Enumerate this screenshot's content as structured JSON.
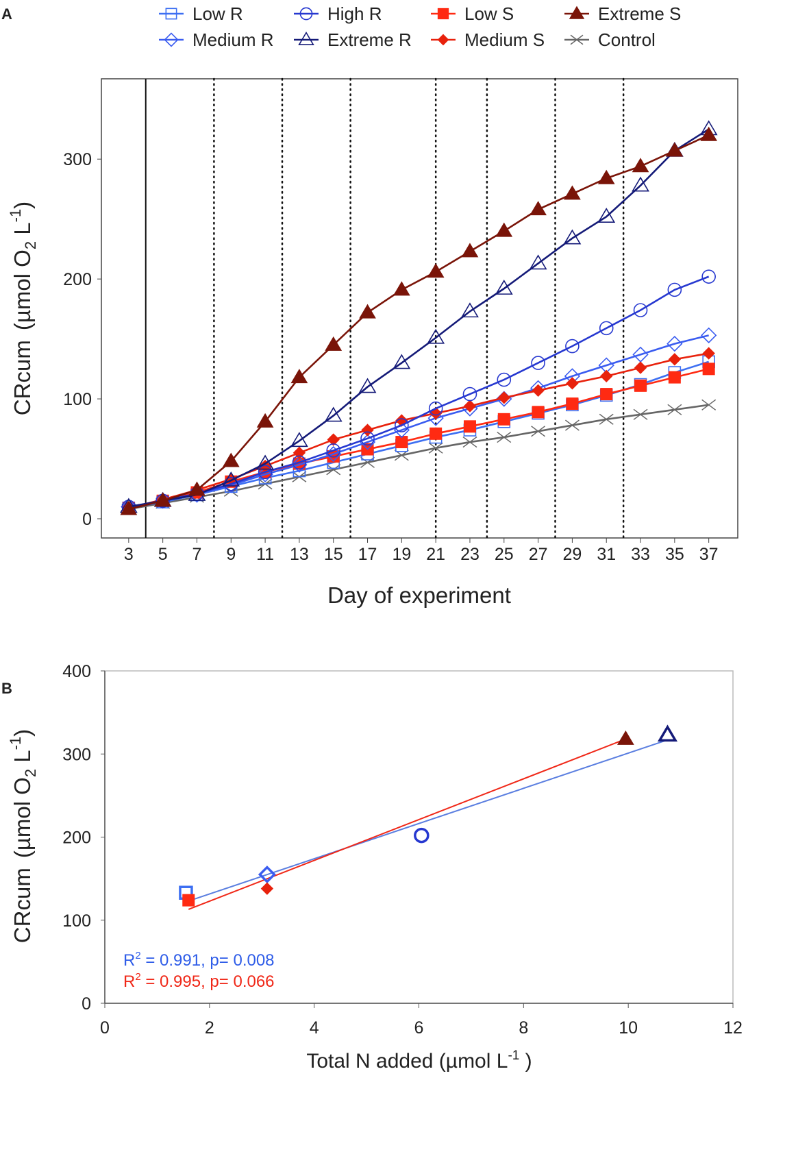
{
  "panel_labels": {
    "a": "A",
    "b": "B"
  },
  "colors": {
    "Low R": "#3d6ff2",
    "Medium R": "#3a5cf0",
    "High R": "#2638d0",
    "Extreme R": "#141a78",
    "Low S": "#ff2a12",
    "Medium S": "#e8210c",
    "Extreme S": "#7a1408",
    "Control": "#666666"
  },
  "markers": {
    "Low R": "open-square",
    "Medium R": "open-diamond",
    "High R": "open-circle",
    "Extreme R": "open-triangle",
    "Low S": "filled-square",
    "Medium S": "filled-diamond",
    "Extreme S": "filled-triangle",
    "Control": "cross"
  },
  "legend": [
    "Low R",
    "High R",
    "Low S",
    "Extreme S",
    "Medium R",
    "Extreme R",
    "Medium S",
    "Control"
  ],
  "chart_data": [
    {
      "type": "line",
      "xlabel": "Day of experiment",
      "ylabel_main": "CRcum",
      "ylabel_unit": "(µmol O",
      "ylabel_sub": "2",
      "ylabel_rest": " L",
      "ylabel_sup": "-1",
      "ylabel_close": ")",
      "x": [
        3,
        5,
        7,
        9,
        11,
        13,
        15,
        17,
        19,
        21,
        23,
        25,
        27,
        29,
        31,
        33,
        35,
        37
      ],
      "xticks": [
        "3",
        "5",
        "7",
        "9",
        "11",
        "13",
        "15",
        "17",
        "19",
        "21",
        "23",
        "25",
        "27",
        "29",
        "31",
        "33",
        "35",
        "37"
      ],
      "xlim": [
        1.4,
        38.7
      ],
      "ylim": [
        -16,
        367
      ],
      "yticks": [
        "0",
        "100",
        "200",
        "300"
      ],
      "vertical_lines": {
        "solid": [
          4
        ],
        "dotted": [
          8,
          12,
          16,
          21,
          24,
          28,
          32
        ]
      },
      "legend_position": "top",
      "series": [
        {
          "name": "Low R",
          "values": [
            9,
            14,
            20,
            27,
            34,
            40,
            47,
            54,
            61,
            68,
            74,
            81,
            88,
            95,
            103,
            112,
            122,
            131
          ]
        },
        {
          "name": "High R",
          "values": [
            10,
            15,
            21,
            29,
            39,
            47,
            57,
            67,
            78,
            92,
            104,
            116,
            130,
            144,
            159,
            174,
            191,
            202
          ]
        },
        {
          "name": "Low S",
          "values": [
            9,
            15,
            22,
            31,
            39,
            46,
            52,
            58,
            64,
            71,
            77,
            83,
            89,
            96,
            104,
            111,
            118,
            125
          ]
        },
        {
          "name": "Extreme S",
          "values": [
            8,
            15,
            24,
            48,
            81,
            118,
            145,
            172,
            191,
            206,
            223,
            240,
            258,
            271,
            284,
            294,
            307,
            320
          ]
        },
        {
          "name": "Medium R",
          "values": [
            10,
            15,
            20,
            28,
            37,
            45,
            54,
            64,
            74,
            84,
            92,
            100,
            109,
            119,
            128,
            137,
            146,
            153
          ]
        },
        {
          "name": "Extreme R",
          "values": [
            10,
            15,
            20,
            32,
            46,
            65,
            86,
            110,
            130,
            151,
            173,
            192,
            213,
            234,
            252,
            278,
            307,
            325
          ]
        },
        {
          "name": "Medium S",
          "values": [
            9,
            16,
            24,
            33,
            44,
            55,
            66,
            74,
            82,
            88,
            94,
            101,
            107,
            113,
            119,
            126,
            133,
            138
          ]
        },
        {
          "name": "Control",
          "values": [
            8,
            13,
            18,
            23,
            29,
            35,
            41,
            47,
            53,
            59,
            64,
            68,
            73,
            78,
            83,
            87,
            91,
            95
          ]
        }
      ]
    },
    {
      "type": "scatter",
      "xlabel_main": "Total N added (µmol L",
      "xlabel_sup": "-1",
      "xlabel_close": " )",
      "ylabel_main": "CRcum",
      "ylabel_unit": "(µmol O",
      "ylabel_sub": "2",
      "ylabel_rest": " L",
      "ylabel_sup": "-1",
      "ylabel_close": ")",
      "xlim": [
        0,
        12
      ],
      "ylim": [
        0,
        400
      ],
      "xticks": [
        "0",
        "2",
        "4",
        "6",
        "8",
        "10",
        "12"
      ],
      "yticks": [
        "0",
        "100",
        "200",
        "300",
        "400"
      ],
      "points": [
        {
          "series": "Low R",
          "x": 1.55,
          "y": 133
        },
        {
          "series": "Low S",
          "x": 1.6,
          "y": 124
        },
        {
          "series": "Medium R",
          "x": 3.1,
          "y": 155
        },
        {
          "series": "Medium S",
          "x": 3.1,
          "y": 138
        },
        {
          "series": "High R",
          "x": 6.05,
          "y": 202
        },
        {
          "series": "Extreme S",
          "x": 9.95,
          "y": 318
        },
        {
          "series": "Extreme R",
          "x": 10.75,
          "y": 323
        }
      ],
      "fits": [
        {
          "group": "R",
          "color": "#5a7ee0",
          "x": [
            1.55,
            10.75
          ],
          "y": [
            122,
            317
          ],
          "r2_label": "R",
          "r2_sup": "2",
          "r2_text": " = 0.991, p= 0.008"
        },
        {
          "group": "S",
          "color": "#f02818",
          "x": [
            1.6,
            9.95
          ],
          "y": [
            113,
            318
          ],
          "r2_label": "R",
          "r2_sup": "2",
          "r2_text": " = 0.995, p= 0.066"
        }
      ]
    }
  ]
}
